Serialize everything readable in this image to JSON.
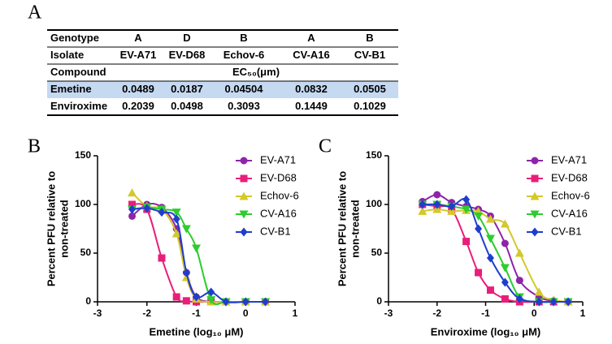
{
  "panel_labels": [
    "A",
    "B",
    "C"
  ],
  "table": {
    "rows": [
      [
        "Genotype",
        "A",
        "D",
        "B",
        "A",
        "B"
      ],
      [
        "Isolate",
        "EV-A71",
        "EV-D68",
        "Echov-6",
        "CV-A16",
        "CV-B1"
      ],
      [
        "Compound",
        "EC₅₀(μm)"
      ],
      [
        "Emetine",
        0.0489,
        0.0187,
        0.04504,
        0.0832,
        0.0505
      ],
      [
        "Enviroxime",
        0.2039,
        0.0498,
        0.3093,
        0.1449,
        0.1029
      ]
    ],
    "highlight_row": 3,
    "highlight_color": "#c5d9f1"
  },
  "chart_data": [
    {
      "type": "line",
      "xlabel": "Emetine (log₁₀ μM)",
      "ylabel": [
        "Percent PFU relative to",
        "non-treated"
      ],
      "xlim": [
        -3,
        1
      ],
      "xticks": [
        -3,
        -2,
        -1,
        0,
        1
      ],
      "ylim": [
        0,
        150
      ],
      "yticks": [
        0,
        50,
        100,
        150
      ],
      "legend": "top-right",
      "x": [
        -2.3,
        -2.0,
        -1.7,
        -1.4,
        -1.2,
        -1.0,
        -0.7,
        -0.4,
        0.0,
        0.4
      ],
      "series": [
        {
          "name": "EV-A71",
          "color": "#8e24aa",
          "marker": "circle",
          "values": [
            88,
            100,
            97,
            75,
            30,
            5,
            0,
            0,
            0,
            0
          ]
        },
        {
          "name": "EV-D68",
          "color": "#e91e7a",
          "marker": "square",
          "values": [
            100,
            95,
            45,
            5,
            1,
            0,
            0,
            0,
            0,
            0
          ]
        },
        {
          "name": "Echov-6",
          "color": "#d4c82a",
          "marker": "triangle-up",
          "values": [
            112,
            98,
            95,
            70,
            25,
            3,
            0,
            0,
            0,
            0
          ]
        },
        {
          "name": "CV-A16",
          "color": "#2ecc2e",
          "marker": "triangle-down",
          "values": [
            95,
            97,
            95,
            92,
            75,
            55,
            2,
            0,
            0,
            0
          ]
        },
        {
          "name": "CV-B1",
          "color": "#1e3fcc",
          "marker": "diamond",
          "values": [
            95,
            96,
            92,
            85,
            30,
            5,
            10,
            0,
            0,
            0
          ]
        }
      ]
    },
    {
      "type": "line",
      "xlabel": "Enviroxime (log₁₀ μM)",
      "ylabel": [
        "Percent PFU relative to",
        "non-treated"
      ],
      "xlim": [
        -3,
        1
      ],
      "xticks": [
        -3,
        -2,
        -1,
        0,
        1
      ],
      "ylim": [
        0,
        150
      ],
      "yticks": [
        0,
        50,
        100,
        150
      ],
      "legend": "top-right",
      "x": [
        -2.3,
        -2.0,
        -1.7,
        -1.4,
        -1.15,
        -0.9,
        -0.6,
        -0.3,
        0.1,
        0.4,
        0.7
      ],
      "series": [
        {
          "name": "EV-A71",
          "color": "#8e24aa",
          "marker": "circle",
          "values": [
            103,
            110,
            102,
            98,
            95,
            88,
            60,
            22,
            5,
            1,
            0
          ]
        },
        {
          "name": "EV-D68",
          "color": "#e91e7a",
          "marker": "square",
          "values": [
            100,
            98,
            95,
            62,
            30,
            12,
            3,
            0,
            0,
            0,
            0
          ]
        },
        {
          "name": "Echov-6",
          "color": "#d4c82a",
          "marker": "triangle-up",
          "values": [
            93,
            95,
            93,
            94,
            93,
            85,
            80,
            50,
            10,
            2,
            0
          ]
        },
        {
          "name": "CV-A16",
          "color": "#2ecc2e",
          "marker": "triangle-down",
          "values": [
            100,
            100,
            98,
            95,
            88,
            65,
            35,
            5,
            0,
            0,
            0
          ]
        },
        {
          "name": "CV-B1",
          "color": "#1e3fcc",
          "marker": "diamond",
          "values": [
            100,
            100,
            98,
            105,
            75,
            45,
            20,
            3,
            0,
            0,
            0
          ]
        }
      ]
    }
  ]
}
